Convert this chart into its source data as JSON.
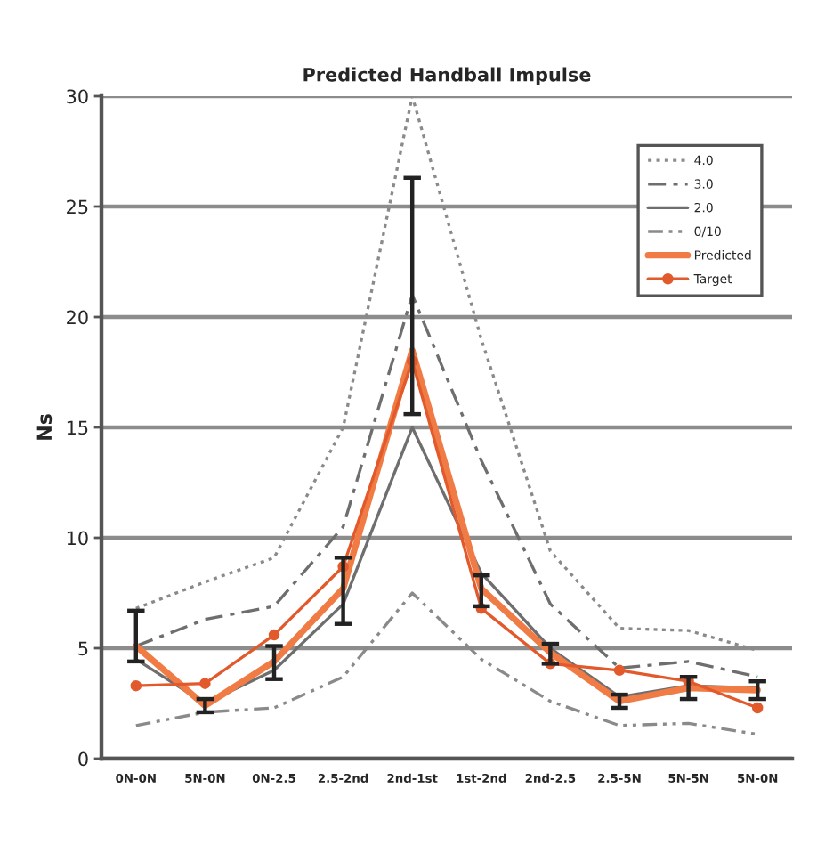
{
  "chart_data": {
    "type": "line",
    "title": "Predicted Handball Impulse",
    "ylabel": "Ns",
    "categories": [
      "0N-0N",
      "5N-0N",
      "0N-2.5",
      "2.5-2nd",
      "2nd-1st",
      "1st-2nd",
      "2nd-2.5",
      "2.5-5N",
      "5N-5N",
      "5N-0N"
    ],
    "series": [
      {
        "name": "4.0",
        "color": "#8a8a8a",
        "line_style": "dotted",
        "values": [
          6.8,
          8.0,
          9.1,
          15.0,
          30.0,
          19.0,
          9.4,
          5.9,
          5.8,
          4.9
        ]
      },
      {
        "name": "3.0",
        "color": "#6e6e6e",
        "line_style": "dashdot",
        "values": [
          5.1,
          6.3,
          6.9,
          10.5,
          21.0,
          13.5,
          7.0,
          4.1,
          4.4,
          3.7
        ]
      },
      {
        "name": "2.0",
        "color": "#6e6e6e",
        "line_style": "solid",
        "values": [
          4.5,
          2.5,
          4.0,
          7.0,
          15.0,
          8.4,
          5.0,
          2.8,
          3.3,
          3.2
        ]
      },
      {
        "name": "0/10",
        "color": "#8a8a8a",
        "line_style": "dashdotdot",
        "values": [
          1.5,
          2.1,
          2.3,
          3.7,
          7.5,
          4.5,
          2.6,
          1.5,
          1.6,
          1.1
        ]
      },
      {
        "name": "Predicted",
        "color": "#f07b45",
        "line_style": "solid",
        "values": [
          5.1,
          2.4,
          4.4,
          7.7,
          18.5,
          7.7,
          4.8,
          2.6,
          3.2,
          3.1
        ],
        "errors": [
          [
            4.4,
            6.7
          ],
          [
            2.1,
            2.7
          ],
          [
            3.6,
            5.1
          ],
          [
            6.1,
            9.1
          ],
          [
            15.6,
            26.3
          ],
          [
            6.9,
            8.3
          ],
          [
            4.3,
            5.2
          ],
          [
            2.3,
            2.9
          ],
          [
            2.7,
            3.7
          ],
          [
            2.7,
            3.5
          ]
        ]
      },
      {
        "name": "Target",
        "color": "#e25a2c",
        "line_style": "solid",
        "marker": "circle",
        "values": [
          3.3,
          3.4,
          5.6,
          8.7,
          18.0,
          6.8,
          4.3,
          4.0,
          3.5,
          2.3
        ]
      }
    ],
    "ylim": [
      0,
      30
    ],
    "yticks": [
      0,
      5,
      10,
      15,
      20,
      25,
      30
    ],
    "grid": "y",
    "legend": "top right",
    "marker": "none"
  }
}
